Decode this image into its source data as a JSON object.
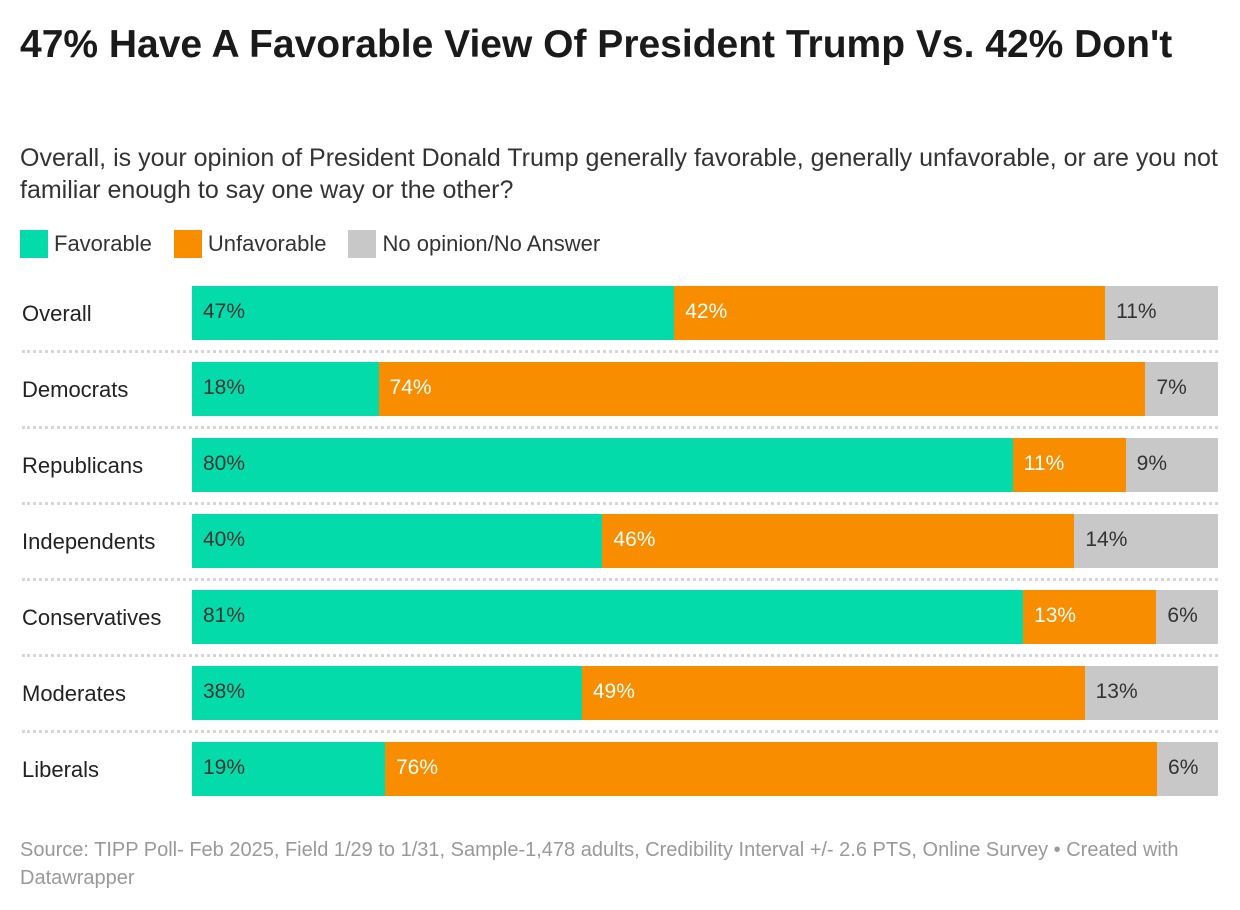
{
  "chart_data": {
    "type": "bar",
    "orientation": "horizontal",
    "stacked": true,
    "title": "47% Have A Favorable View Of President Trump Vs. 42% Don't",
    "subtitle": "Overall, is your opinion of President Donald Trump generally favorable, generally unfavorable, or are you not familiar enough to say one way or the other?",
    "legend_position": "top-left",
    "categories": [
      "Overall",
      "Democrats",
      "Republicans",
      "Independents",
      "Conservatives",
      "Moderates",
      "Liberals"
    ],
    "series": [
      {
        "name": "Favorable",
        "color": "#03dcaa",
        "label_color": "#333333",
        "values": [
          47,
          18,
          80,
          40,
          81,
          38,
          19
        ]
      },
      {
        "name": "Unfavorable",
        "color": "#f98d00",
        "label_color": "#ffffff",
        "values": [
          42,
          74,
          11,
          46,
          13,
          49,
          76
        ]
      },
      {
        "name": "No opinion/No Answer",
        "color": "#c8c8c8",
        "label_color": "#333333",
        "values": [
          11,
          7,
          9,
          14,
          6,
          13,
          6
        ]
      }
    ],
    "value_suffix": "%",
    "xlim": [
      0,
      100
    ]
  },
  "footer": "Source: TIPP Poll- Feb 2025, Field 1/29 to 1/31, Sample-1,478 adults, Credibility Interval +/- 2.6 PTS, Online Survey • Created with Datawrapper"
}
